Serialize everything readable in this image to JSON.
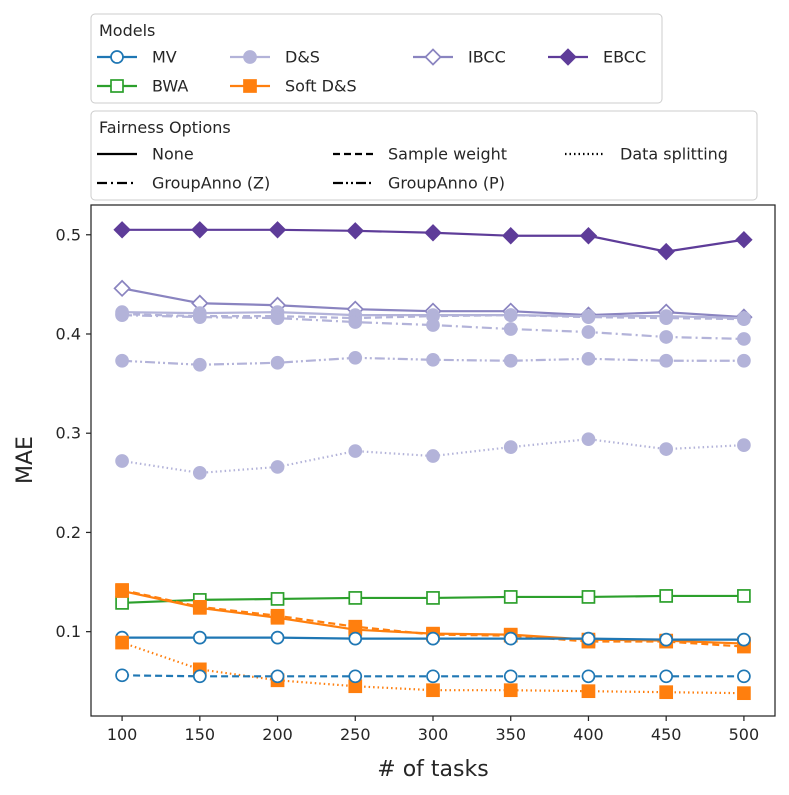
{
  "chart_data": {
    "type": "line",
    "xlabel": "# of tasks",
    "ylabel": "MAE",
    "x": [
      100,
      150,
      200,
      250,
      300,
      350,
      400,
      450,
      500
    ],
    "xticks": [
      100,
      150,
      200,
      250,
      300,
      350,
      400,
      450,
      500
    ],
    "yticks": [
      0.1,
      0.2,
      0.3,
      0.4,
      0.5
    ],
    "xlim": [
      80,
      520
    ],
    "ylim": [
      0.015,
      0.53
    ],
    "grid": false,
    "models_legend": {
      "title": "Models",
      "entries": [
        {
          "label": "MV",
          "color": "#1f77b4",
          "marker": "circle-open"
        },
        {
          "label": "D&S",
          "color": "#b3b3d9",
          "marker": "circle-filled"
        },
        {
          "label": "IBCC",
          "color": "#8a84c0",
          "marker": "diamond-open"
        },
        {
          "label": "EBCC",
          "color": "#5e3c99",
          "marker": "diamond-filled"
        },
        {
          "label": "BWA",
          "color": "#2ca02c",
          "marker": "square-open"
        },
        {
          "label": "Soft D&S",
          "color": "#ff7f0e",
          "marker": "square-filled"
        }
      ]
    },
    "fairness_legend": {
      "title": "Fairness Options",
      "entries": [
        {
          "label": "None",
          "dash": "solid"
        },
        {
          "label": "Sample weight",
          "dash": "dashed"
        },
        {
          "label": "Data splitting",
          "dash": "dotted"
        },
        {
          "label": "GroupAnno (Z)",
          "dash": "dashdot"
        },
        {
          "label": "GroupAnno (P)",
          "dash": "dashdotdot"
        }
      ]
    },
    "series": [
      {
        "model": "EBCC",
        "fairness": "None",
        "color": "#5e3c99",
        "marker": "diamond-filled",
        "dash": "solid",
        "values": [
          0.505,
          0.505,
          0.505,
          0.504,
          0.502,
          0.499,
          0.499,
          0.483,
          0.495
        ]
      },
      {
        "model": "IBCC",
        "fairness": "None",
        "color": "#8a84c0",
        "marker": "diamond-open",
        "dash": "solid",
        "values": [
          0.446,
          0.431,
          0.429,
          0.425,
          0.423,
          0.423,
          0.419,
          0.422,
          0.417
        ]
      },
      {
        "model": "D&S",
        "fairness": "None",
        "color": "#b3b3d9",
        "marker": "circle-filled",
        "dash": "solid",
        "values": [
          0.422,
          0.421,
          0.422,
          0.419,
          0.419,
          0.419,
          0.418,
          0.418,
          0.416
        ]
      },
      {
        "model": "D&S",
        "fairness": "Sample weight",
        "color": "#b3b3d9",
        "marker": "circle-filled",
        "dash": "dashed",
        "values": [
          0.42,
          0.418,
          0.418,
          0.416,
          0.418,
          0.419,
          0.417,
          0.416,
          0.415
        ]
      },
      {
        "model": "D&S",
        "fairness": "GroupAnno (Z)",
        "color": "#b3b3d9",
        "marker": "circle-filled",
        "dash": "dashdot",
        "values": [
          0.419,
          0.417,
          0.416,
          0.412,
          0.409,
          0.405,
          0.402,
          0.397,
          0.395
        ]
      },
      {
        "model": "D&S",
        "fairness": "GroupAnno (P)",
        "color": "#b3b3d9",
        "marker": "circle-filled",
        "dash": "dashdotdot",
        "values": [
          0.373,
          0.369,
          0.371,
          0.376,
          0.374,
          0.373,
          0.375,
          0.373,
          0.373
        ]
      },
      {
        "model": "D&S",
        "fairness": "Data splitting",
        "color": "#b3b3d9",
        "marker": "circle-filled",
        "dash": "dotted",
        "values": [
          0.272,
          0.26,
          0.266,
          0.282,
          0.277,
          0.286,
          0.294,
          0.284,
          0.288
        ]
      },
      {
        "model": "BWA",
        "fairness": "None",
        "color": "#2ca02c",
        "marker": "square-open",
        "dash": "solid",
        "values": [
          0.129,
          0.132,
          0.133,
          0.134,
          0.134,
          0.135,
          0.135,
          0.136,
          0.136
        ]
      },
      {
        "model": "Soft D&S",
        "fairness": "None",
        "color": "#ff7f0e",
        "marker": "square-filled",
        "dash": "solid",
        "values": [
          0.141,
          0.124,
          0.114,
          0.102,
          0.098,
          0.097,
          0.092,
          0.091,
          0.088
        ]
      },
      {
        "model": "Soft D&S",
        "fairness": "Sample weight",
        "color": "#ff7f0e",
        "marker": "square-filled",
        "dash": "dashed",
        "values": [
          0.142,
          0.125,
          0.116,
          0.105,
          0.097,
          0.096,
          0.09,
          0.09,
          0.085
        ]
      },
      {
        "model": "MV",
        "fairness": "None",
        "color": "#1f77b4",
        "marker": "circle-open",
        "dash": "solid",
        "values": [
          0.094,
          0.094,
          0.094,
          0.093,
          0.093,
          0.093,
          0.093,
          0.092,
          0.092
        ]
      },
      {
        "model": "Soft D&S",
        "fairness": "Data splitting",
        "color": "#ff7f0e",
        "marker": "square-filled",
        "dash": "dotted",
        "values": [
          0.089,
          0.062,
          0.051,
          0.045,
          0.041,
          0.041,
          0.04,
          0.039,
          0.038
        ]
      },
      {
        "model": "MV",
        "fairness": "Sample weight",
        "color": "#1f77b4",
        "marker": "circle-open",
        "dash": "dashed",
        "values": [
          0.056,
          0.055,
          0.055,
          0.055,
          0.055,
          0.055,
          0.055,
          0.055,
          0.055
        ]
      }
    ]
  }
}
